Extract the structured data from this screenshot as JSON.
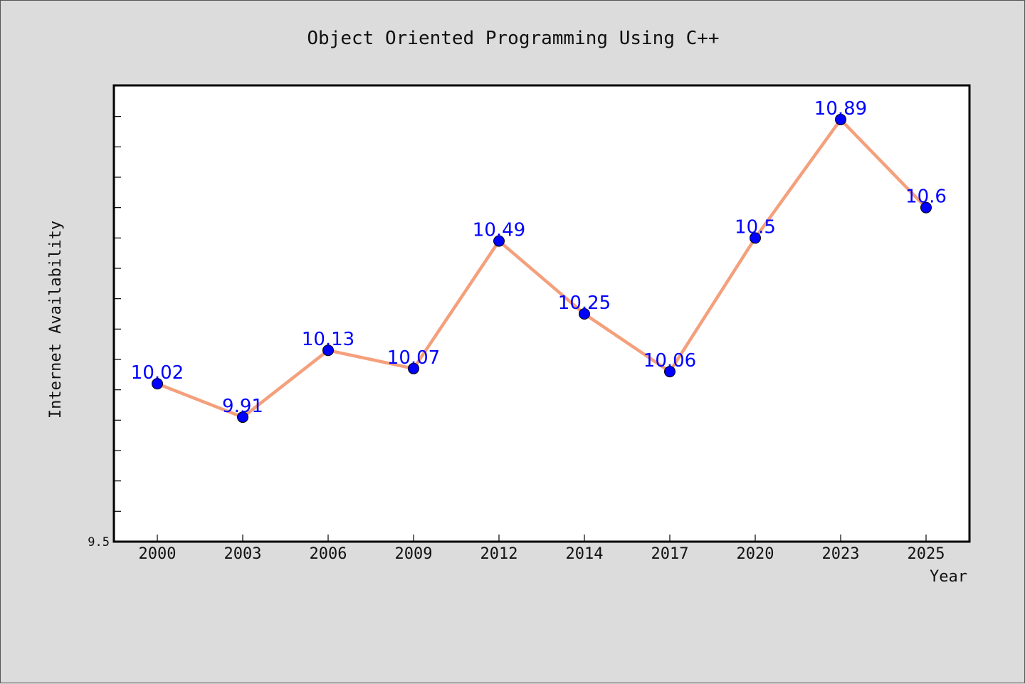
{
  "chart_data": {
    "type": "line",
    "title": "Object Oriented Programming Using C++",
    "xlabel": "Year",
    "ylabel": "Internet Availability",
    "categories": [
      "2000",
      "2003",
      "2006",
      "2009",
      "2012",
      "2014",
      "2017",
      "2020",
      "2023",
      "2025"
    ],
    "series": [
      {
        "values": [
          10.02,
          9.91,
          10.13,
          10.07,
          10.49,
          10.25,
          10.06,
          10.5,
          10.89,
          10.6
        ]
      }
    ],
    "ylim": [
      9.5,
      11.0
    ],
    "y_tick_labels": [
      "9.5"
    ],
    "grid": false,
    "legend": "none",
    "colors": {
      "line": "#f4a07c",
      "marker": "#0000ff",
      "label": "#0000ff",
      "plot_background": "#ffffff",
      "figure_background": "#dcdcdc"
    }
  }
}
